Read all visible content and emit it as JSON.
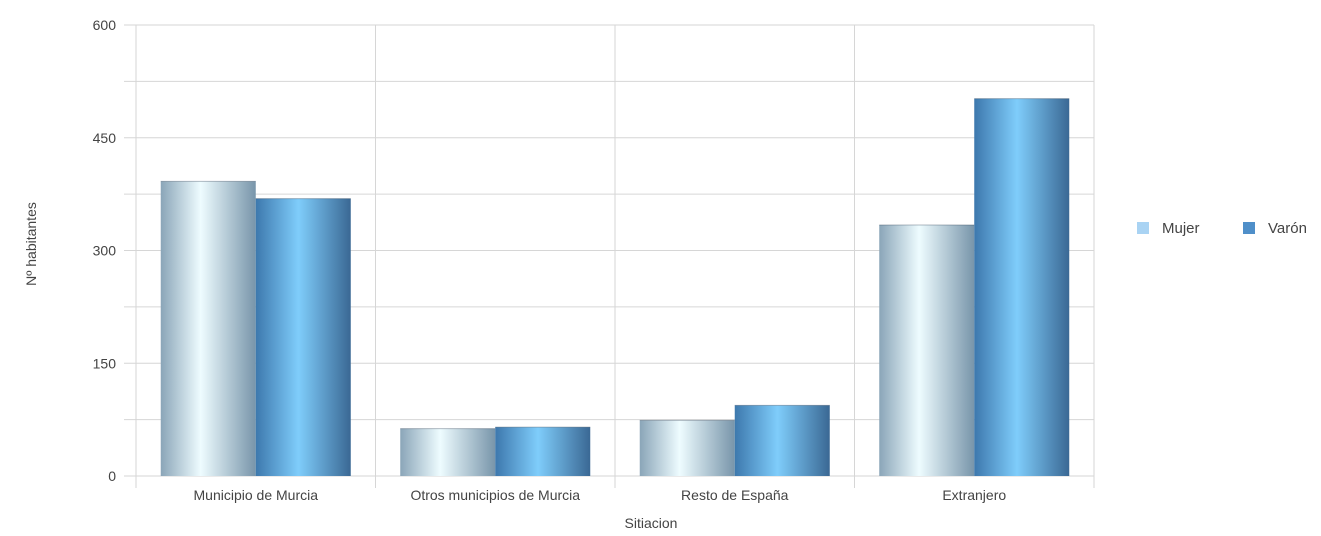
{
  "chart_data": {
    "type": "bar",
    "categories": [
      "Municipio de Murcia",
      "Otros municipios de Murcia",
      "Resto de España",
      "Extranjero"
    ],
    "series": [
      {
        "name": "Mujer",
        "values": [
          392,
          63,
          74,
          334
        ],
        "color": "#a9d3f3"
      },
      {
        "name": "Varón",
        "values": [
          369,
          65,
          94,
          502
        ],
        "color": "#4f8fc9"
      }
    ],
    "xlabel": "Sitiacion",
    "ylabel": "Nº habitantes",
    "ylim": [
      0,
      600
    ],
    "yticks": [
      0,
      150,
      300,
      450,
      600
    ],
    "grid": true,
    "legend": "right"
  }
}
